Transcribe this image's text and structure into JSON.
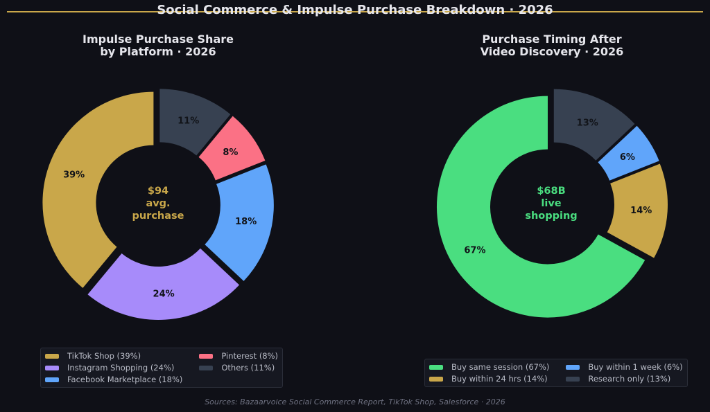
{
  "title": "Social Commerce & Impulse Purchase Breakdown · 2026",
  "source": "Sources: Bazaarvoice Social Commerce Report, TikTok Shop, Salesforce · 2026",
  "chart_data": [
    {
      "type": "pie",
      "variant": "donut",
      "title_lines": [
        "Impulse Purchase Share",
        "by Platform · 2026"
      ],
      "center_lines": [
        "$94",
        "avg.",
        "purchase"
      ],
      "center_color": "#c9a74a",
      "slices": [
        {
          "label": "TikTok Shop",
          "value": 39,
          "pct_label": "39%",
          "legend": "TikTok Shop (39%)",
          "color": "#c9a74a",
          "explode": true
        },
        {
          "label": "Instagram Shopping",
          "value": 24,
          "pct_label": "24%",
          "legend": "Instagram Shopping (24%)",
          "color": "#a78bfa",
          "explode": true
        },
        {
          "label": "Facebook Marketplace",
          "value": 18,
          "pct_label": "18%",
          "legend": "Facebook Marketplace (18%)",
          "color": "#60a5fa",
          "explode": true
        },
        {
          "label": "Pinterest",
          "value": 8,
          "pct_label": "8%",
          "legend": "Pinterest (8%)",
          "color": "#fb7185",
          "explode": true
        },
        {
          "label": "Others",
          "value": 11,
          "pct_label": "11%",
          "legend": "Others (11%)",
          "color": "#374151",
          "explode": true
        }
      ],
      "legend_columns": 2,
      "legend_placement": "bottom"
    },
    {
      "type": "pie",
      "variant": "donut",
      "title_lines": [
        "Purchase Timing After",
        "Video Discovery · 2026"
      ],
      "center_lines": [
        "$68B",
        "live",
        "shopping"
      ],
      "center_color": "#4ade80",
      "slices": [
        {
          "label": "Buy same session",
          "value": 67,
          "pct_label": "67%",
          "legend": "Buy same session (67%)",
          "color": "#4ade80",
          "explode": true
        },
        {
          "label": "Buy within 24 hrs",
          "value": 14,
          "pct_label": "14%",
          "legend": "Buy within 24 hrs (14%)",
          "color": "#c9a74a",
          "explode": true
        },
        {
          "label": "Buy within 1 week",
          "value": 6,
          "pct_label": "6%",
          "legend": "Buy within 1 week (6%)",
          "color": "#60a5fa",
          "explode": true
        },
        {
          "label": "Research only",
          "value": 13,
          "pct_label": "13%",
          "legend": "Research only (13%)",
          "color": "#374151",
          "explode": true
        }
      ],
      "legend_columns": 2,
      "legend_placement": "bottom"
    }
  ]
}
